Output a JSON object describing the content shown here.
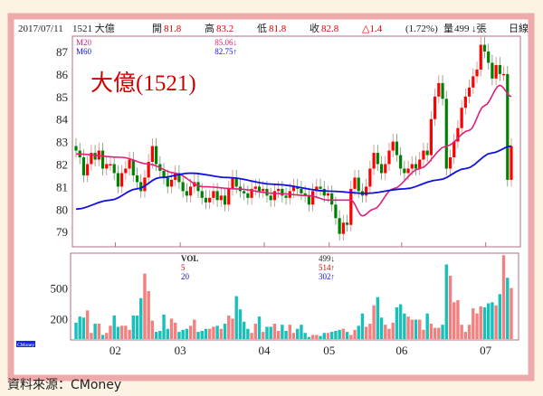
{
  "header": {
    "date": "2017/07/11",
    "stock": "1521 大億",
    "open_label": "開",
    "open": "81.8",
    "high_label": "高",
    "high": "83.2",
    "low_label": "低",
    "low": "81.8",
    "close_label": "收",
    "close": "82.8",
    "change": "△1.4",
    "change_pct": "(1.72%)",
    "volume_label": "量",
    "volume": "499",
    "volume_unit": "↓張",
    "period": "日線"
  },
  "price_legend": {
    "ma20_label": "M20",
    "ma20_value": "85.06↓",
    "ma60_label": "M60",
    "ma60_value": "82.75↑"
  },
  "volume_legend": {
    "vol_label": "VOL",
    "vol_value": "499↓",
    "ma5_label": "5",
    "ma5_value": "514↑",
    "ma20_label": "20",
    "ma20_value": "302↑"
  },
  "title": "大億(1521)",
  "logo": "CMoney",
  "source": "資料來源：CMoney",
  "colors": {
    "up": "#ff0000",
    "down": "#008000",
    "ma20": "#e0207a",
    "ma60": "#1010e0",
    "vol_up": "#f47f7f",
    "vol_down": "#17c0b8",
    "frame": "#eeaaaa"
  },
  "chart_data": {
    "type": "candlestick",
    "price_ticks": [
      87,
      86,
      85,
      84,
      83,
      82,
      81,
      80,
      79
    ],
    "ylim": [
      78.3,
      87.7
    ],
    "volume_ticks": [
      500,
      200
    ],
    "volume_ylim": [
      0,
      850
    ],
    "months": [
      {
        "label": "02",
        "start_index": 11
      },
      {
        "label": "03",
        "start_index": 28
      },
      {
        "label": "04",
        "start_index": 50
      },
      {
        "label": "05",
        "start_index": 67
      },
      {
        "label": "06",
        "start_index": 86
      },
      {
        "label": "07",
        "start_index": 108
      }
    ],
    "close": [
      82.6,
      82.3,
      81.5,
      82.0,
      82.5,
      82.2,
      82.6,
      81.8,
      82.0,
      82.0,
      81.6,
      81.0,
      81.6,
      81.8,
      82.2,
      81.5,
      81.2,
      80.8,
      81.4,
      82.1,
      82.8,
      82.0,
      81.7,
      81.4,
      81.0,
      81.3,
      81.6,
      81.2,
      80.8,
      80.6,
      81.0,
      81.2,
      80.8,
      80.5,
      80.3,
      80.5,
      80.8,
      80.4,
      80.6,
      80.2,
      80.9,
      81.4,
      81.0,
      80.8,
      80.7,
      80.5,
      80.9,
      81.0,
      80.8,
      80.9,
      80.6,
      80.4,
      80.8,
      80.9,
      80.6,
      80.5,
      80.8,
      81.0,
      80.9,
      80.7,
      80.6,
      80.2,
      80.8,
      81.0,
      80.9,
      80.6,
      80.7,
      80.2,
      79.6,
      78.9,
      79.4,
      79.3,
      80.9,
      81.4,
      80.8,
      80.6,
      81.0,
      81.8,
      82.5,
      82.0,
      81.6,
      82.0,
      82.6,
      83.0,
      82.4,
      81.8,
      81.6,
      81.8,
      82.0,
      81.8,
      82.2,
      82.6,
      82.4,
      84.0,
      85.0,
      85.6,
      84.9,
      81.8,
      82.3,
      83.0,
      83.6,
      84.5,
      85.0,
      85.4,
      85.9,
      86.2,
      87.3,
      87.0,
      86.5,
      85.8,
      86.4,
      86.0,
      86.0,
      81.3,
      82.8
    ],
    "volume": [
      160,
      220,
      210,
      280,
      60,
      150,
      150,
      40,
      60,
      130,
      230,
      120,
      130,
      130,
      90,
      230,
      230,
      400,
      640,
      470,
      180,
      70,
      80,
      240,
      100,
      200,
      160,
      70,
      90,
      100,
      130,
      190,
      70,
      80,
      100,
      100,
      120,
      130,
      100,
      150,
      230,
      200,
      420,
      290,
      170,
      100,
      60,
      150,
      220,
      70,
      120,
      120,
      150,
      80,
      140,
      80,
      140,
      60,
      100,
      140,
      60,
      20,
      40,
      40,
      30,
      60,
      60,
      70,
      80,
      90,
      100,
      70,
      40,
      90,
      130,
      250,
      120,
      150,
      330,
      410,
      210,
      140,
      100,
      160,
      310,
      340,
      250,
      220,
      190,
      190,
      190,
      90,
      250,
      150,
      110,
      110,
      140,
      730,
      620,
      360,
      380,
      140,
      70,
      140,
      300,
      250,
      320,
      310,
      350,
      360,
      330,
      440,
      820,
      600,
      499
    ],
    "ma20": [
      [
        0,
        82.45
      ],
      [
        12,
        82.3
      ],
      [
        19,
        82.0
      ],
      [
        26,
        81.6
      ],
      [
        33,
        81.0
      ],
      [
        42,
        80.9
      ],
      [
        52,
        80.7
      ],
      [
        61,
        80.6
      ],
      [
        66,
        80.4
      ],
      [
        72,
        80.4
      ],
      [
        75,
        79.7
      ],
      [
        78,
        80.0
      ],
      [
        83,
        80.9
      ],
      [
        90,
        81.8
      ],
      [
        97,
        82.8
      ],
      [
        103,
        83.5
      ],
      [
        107,
        84.6
      ],
      [
        111,
        85.5
      ],
      [
        114,
        85.0
      ]
    ],
    "ma60": [
      [
        0,
        80.0
      ],
      [
        9,
        80.4
      ],
      [
        16,
        80.9
      ],
      [
        22,
        81.4
      ],
      [
        30,
        81.6
      ],
      [
        40,
        81.4
      ],
      [
        52,
        81.1
      ],
      [
        66,
        80.8
      ],
      [
        76,
        80.7
      ],
      [
        86,
        80.9
      ],
      [
        95,
        81.3
      ],
      [
        102,
        81.8
      ],
      [
        109,
        82.5
      ],
      [
        114,
        82.8
      ]
    ]
  }
}
